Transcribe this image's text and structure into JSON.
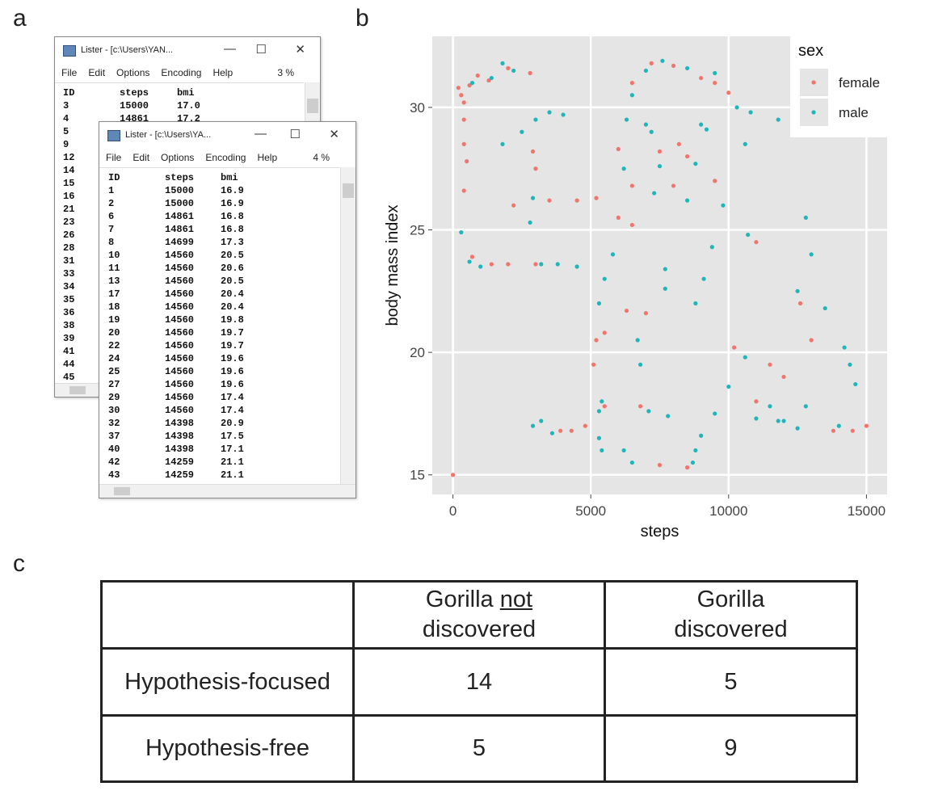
{
  "panel_labels": [
    "a",
    "b",
    "c"
  ],
  "windows": [
    {
      "title": "Lister - [c:\\Users\\YAN...",
      "menu": [
        "File",
        "Edit",
        "Options",
        "Encoding",
        "Help"
      ],
      "percent": "3 %",
      "columns": [
        "ID",
        "steps",
        "bmi"
      ],
      "rows": [
        [
          "3",
          "15000",
          "17.0"
        ],
        [
          "4",
          "14861",
          "17.2"
        ],
        [
          "5"
        ],
        [
          "9"
        ],
        [
          "12"
        ],
        [
          "14"
        ],
        [
          "15"
        ],
        [
          "16"
        ],
        [
          "21"
        ],
        [
          "23"
        ],
        [
          "26"
        ],
        [
          "28"
        ],
        [
          "31"
        ],
        [
          "33"
        ],
        [
          "34"
        ],
        [
          "35"
        ],
        [
          "36"
        ],
        [
          "38"
        ],
        [
          "39"
        ],
        [
          "41"
        ],
        [
          "44"
        ],
        [
          "45"
        ]
      ]
    },
    {
      "title": "Lister - [c:\\Users\\YA...",
      "menu": [
        "File",
        "Edit",
        "Options",
        "Encoding",
        "Help"
      ],
      "percent": "4 %",
      "columns": [
        "ID",
        "steps",
        "bmi"
      ],
      "rows": [
        [
          "1",
          "15000",
          "16.9"
        ],
        [
          "2",
          "15000",
          "16.9"
        ],
        [
          "6",
          "14861",
          "16.8"
        ],
        [
          "7",
          "14861",
          "16.8"
        ],
        [
          "8",
          "14699",
          "17.3"
        ],
        [
          "10",
          "14560",
          "20.5"
        ],
        [
          "11",
          "14560",
          "20.6"
        ],
        [
          "13",
          "14560",
          "20.5"
        ],
        [
          "17",
          "14560",
          "20.4"
        ],
        [
          "18",
          "14560",
          "20.4"
        ],
        [
          "19",
          "14560",
          "19.8"
        ],
        [
          "20",
          "14560",
          "19.7"
        ],
        [
          "22",
          "14560",
          "19.7"
        ],
        [
          "24",
          "14560",
          "19.6"
        ],
        [
          "25",
          "14560",
          "19.6"
        ],
        [
          "27",
          "14560",
          "19.6"
        ],
        [
          "29",
          "14560",
          "17.4"
        ],
        [
          "30",
          "14560",
          "17.4"
        ],
        [
          "32",
          "14398",
          "20.9"
        ],
        [
          "37",
          "14398",
          "17.5"
        ],
        [
          "40",
          "14398",
          "17.1"
        ],
        [
          "42",
          "14259",
          "21.1"
        ],
        [
          "43",
          "14259",
          "21.1"
        ]
      ]
    }
  ],
  "chart_data": {
    "type": "scatter",
    "x_label": "steps",
    "y_label": "body mass index",
    "legend_title": "sex",
    "legend": "right",
    "grid": true,
    "background": "#e5e5e5",
    "xlim": [
      -750,
      15750
    ],
    "ylim": [
      14.2,
      32.9
    ],
    "xticks": [
      0,
      5000,
      10000,
      15000
    ],
    "yticks": [
      15,
      20,
      25,
      30
    ],
    "series": [
      {
        "name": "female",
        "color": "#f0766d",
        "x": [
          0,
          200,
          300,
          400,
          600,
          900,
          1300,
          2000,
          2800,
          400,
          400,
          500,
          400,
          2900,
          3000,
          2200,
          3500,
          4500,
          5200,
          700,
          1400,
          2000,
          3000,
          6000,
          6500,
          7200,
          8000,
          9000,
          9500,
          10000,
          7500,
          8200,
          8500,
          6500,
          8000,
          9500,
          6000,
          6500,
          11000,
          6300,
          7000,
          5500,
          5200,
          5100,
          10200,
          11500,
          12000,
          13000,
          3900,
          4300,
          5500,
          7500,
          8500,
          13800,
          14500,
          15000,
          12600,
          11000,
          6800,
          4800
        ],
        "values": [
          15,
          30.8,
          30.5,
          30.2,
          30.9,
          31.3,
          31.1,
          31.6,
          31.4,
          29.5,
          28.5,
          27.8,
          26.6,
          28.2,
          27.5,
          26.0,
          26.2,
          26.2,
          26.3,
          23.9,
          23.6,
          23.6,
          23.6,
          28.3,
          31.0,
          31.8,
          31.7,
          31.2,
          31.0,
          30.6,
          28.2,
          28.5,
          28.0,
          26.8,
          26.8,
          27.0,
          25.5,
          25.2,
          24.5,
          21.7,
          21.6,
          20.8,
          20.5,
          19.5,
          20.2,
          19.5,
          19.0,
          20.5,
          16.8,
          16.8,
          17.8,
          15.4,
          15.3,
          16.8,
          16.8,
          17.0,
          22.0,
          18.0,
          17.8,
          17.0
        ]
      },
      {
        "name": "male",
        "color": "#1fb5b9",
        "x": [
          300,
          600,
          1000,
          3200,
          3800,
          4500,
          2500,
          3000,
          3500,
          4000,
          1800,
          700,
          1400,
          1800,
          2200,
          2900,
          2800,
          6200,
          6300,
          6500,
          7000,
          7600,
          8500,
          9500,
          10300,
          10600,
          10800,
          11800,
          7000,
          7200,
          9000,
          9200,
          7500,
          8800,
          7300,
          8500,
          9800,
          10700,
          12800,
          13000,
          12500,
          13500,
          14200,
          14600,
          14400,
          9400,
          9100,
          8800,
          5800,
          5500,
          5300,
          7700,
          7700,
          6700,
          6800,
          5400,
          5300,
          5300,
          5400,
          10000,
          10600,
          11000,
          11500,
          12000,
          12800,
          14000,
          3200,
          3600,
          2900,
          6200,
          6500,
          8800,
          8700,
          7100,
          7800,
          9000,
          9500,
          11800,
          12500
        ],
        "values": [
          24.9,
          23.7,
          23.5,
          23.6,
          23.6,
          23.5,
          29.0,
          29.5,
          29.8,
          29.7,
          28.5,
          31.0,
          31.2,
          31.8,
          31.5,
          26.3,
          25.3,
          27.5,
          29.5,
          30.5,
          31.5,
          31.9,
          31.6,
          31.4,
          30.0,
          28.5,
          29.8,
          29.5,
          29.3,
          29.0,
          29.3,
          29.1,
          27.6,
          27.7,
          26.5,
          26.2,
          26.0,
          24.8,
          25.5,
          24.0,
          22.5,
          21.8,
          20.2,
          18.7,
          19.5,
          24.3,
          23.0,
          22.0,
          24.0,
          23.0,
          22.0,
          23.4,
          22.6,
          20.5,
          19.5,
          18.0,
          17.6,
          16.5,
          16.0,
          18.6,
          19.8,
          17.3,
          17.8,
          17.2,
          17.8,
          17.0,
          17.2,
          16.7,
          17.0,
          16.0,
          15.5,
          16.0,
          15.5,
          17.6,
          17.4,
          16.6,
          17.5,
          17.2,
          16.9
        ]
      }
    ]
  },
  "table": {
    "header": [
      [],
      [
        "Gorilla",
        "not",
        "discovered"
      ],
      [
        "Gorilla discovered"
      ]
    ],
    "header_underline": [
      [],
      [
        false,
        true,
        false
      ],
      [
        false
      ]
    ],
    "rows": [
      [
        "Hypothesis-focused",
        "14",
        "5"
      ],
      [
        "Hypothesis-free",
        "5",
        "9"
      ]
    ]
  }
}
